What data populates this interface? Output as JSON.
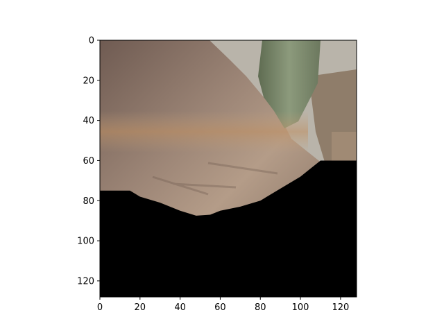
{
  "figure": {
    "image_extent": {
      "x": [
        0,
        128
      ],
      "y": [
        128,
        0
      ]
    },
    "x_ticks": [
      {
        "value": 0,
        "label": "0"
      },
      {
        "value": 20,
        "label": "20"
      },
      {
        "value": 40,
        "label": "40"
      },
      {
        "value": 60,
        "label": "60"
      },
      {
        "value": 80,
        "label": "80"
      },
      {
        "value": 100,
        "label": "100"
      },
      {
        "value": 120,
        "label": "120"
      }
    ],
    "y_ticks": [
      {
        "value": 0,
        "label": "0"
      },
      {
        "value": 20,
        "label": "20"
      },
      {
        "value": 40,
        "label": "40"
      },
      {
        "value": 60,
        "label": "60"
      },
      {
        "value": 80,
        "label": "80"
      },
      {
        "value": 100,
        "label": "100"
      },
      {
        "value": 120,
        "label": "120"
      }
    ],
    "black_region_boundary": [
      [
        0,
        75
      ],
      [
        10,
        75
      ],
      [
        15,
        75
      ],
      [
        20,
        78
      ],
      [
        30,
        81
      ],
      [
        40,
        85
      ],
      [
        48,
        87.5
      ],
      [
        55,
        87
      ],
      [
        60,
        85
      ],
      [
        70,
        83
      ],
      [
        80,
        80
      ],
      [
        90,
        74
      ],
      [
        100,
        68
      ],
      [
        105,
        64
      ],
      [
        110,
        60
      ],
      [
        128,
        60
      ]
    ],
    "colors": {
      "wall": "#8a7468",
      "curtain": "#7b8a6c",
      "backdrop": "#b7b2a8",
      "mask": "#000000"
    }
  }
}
